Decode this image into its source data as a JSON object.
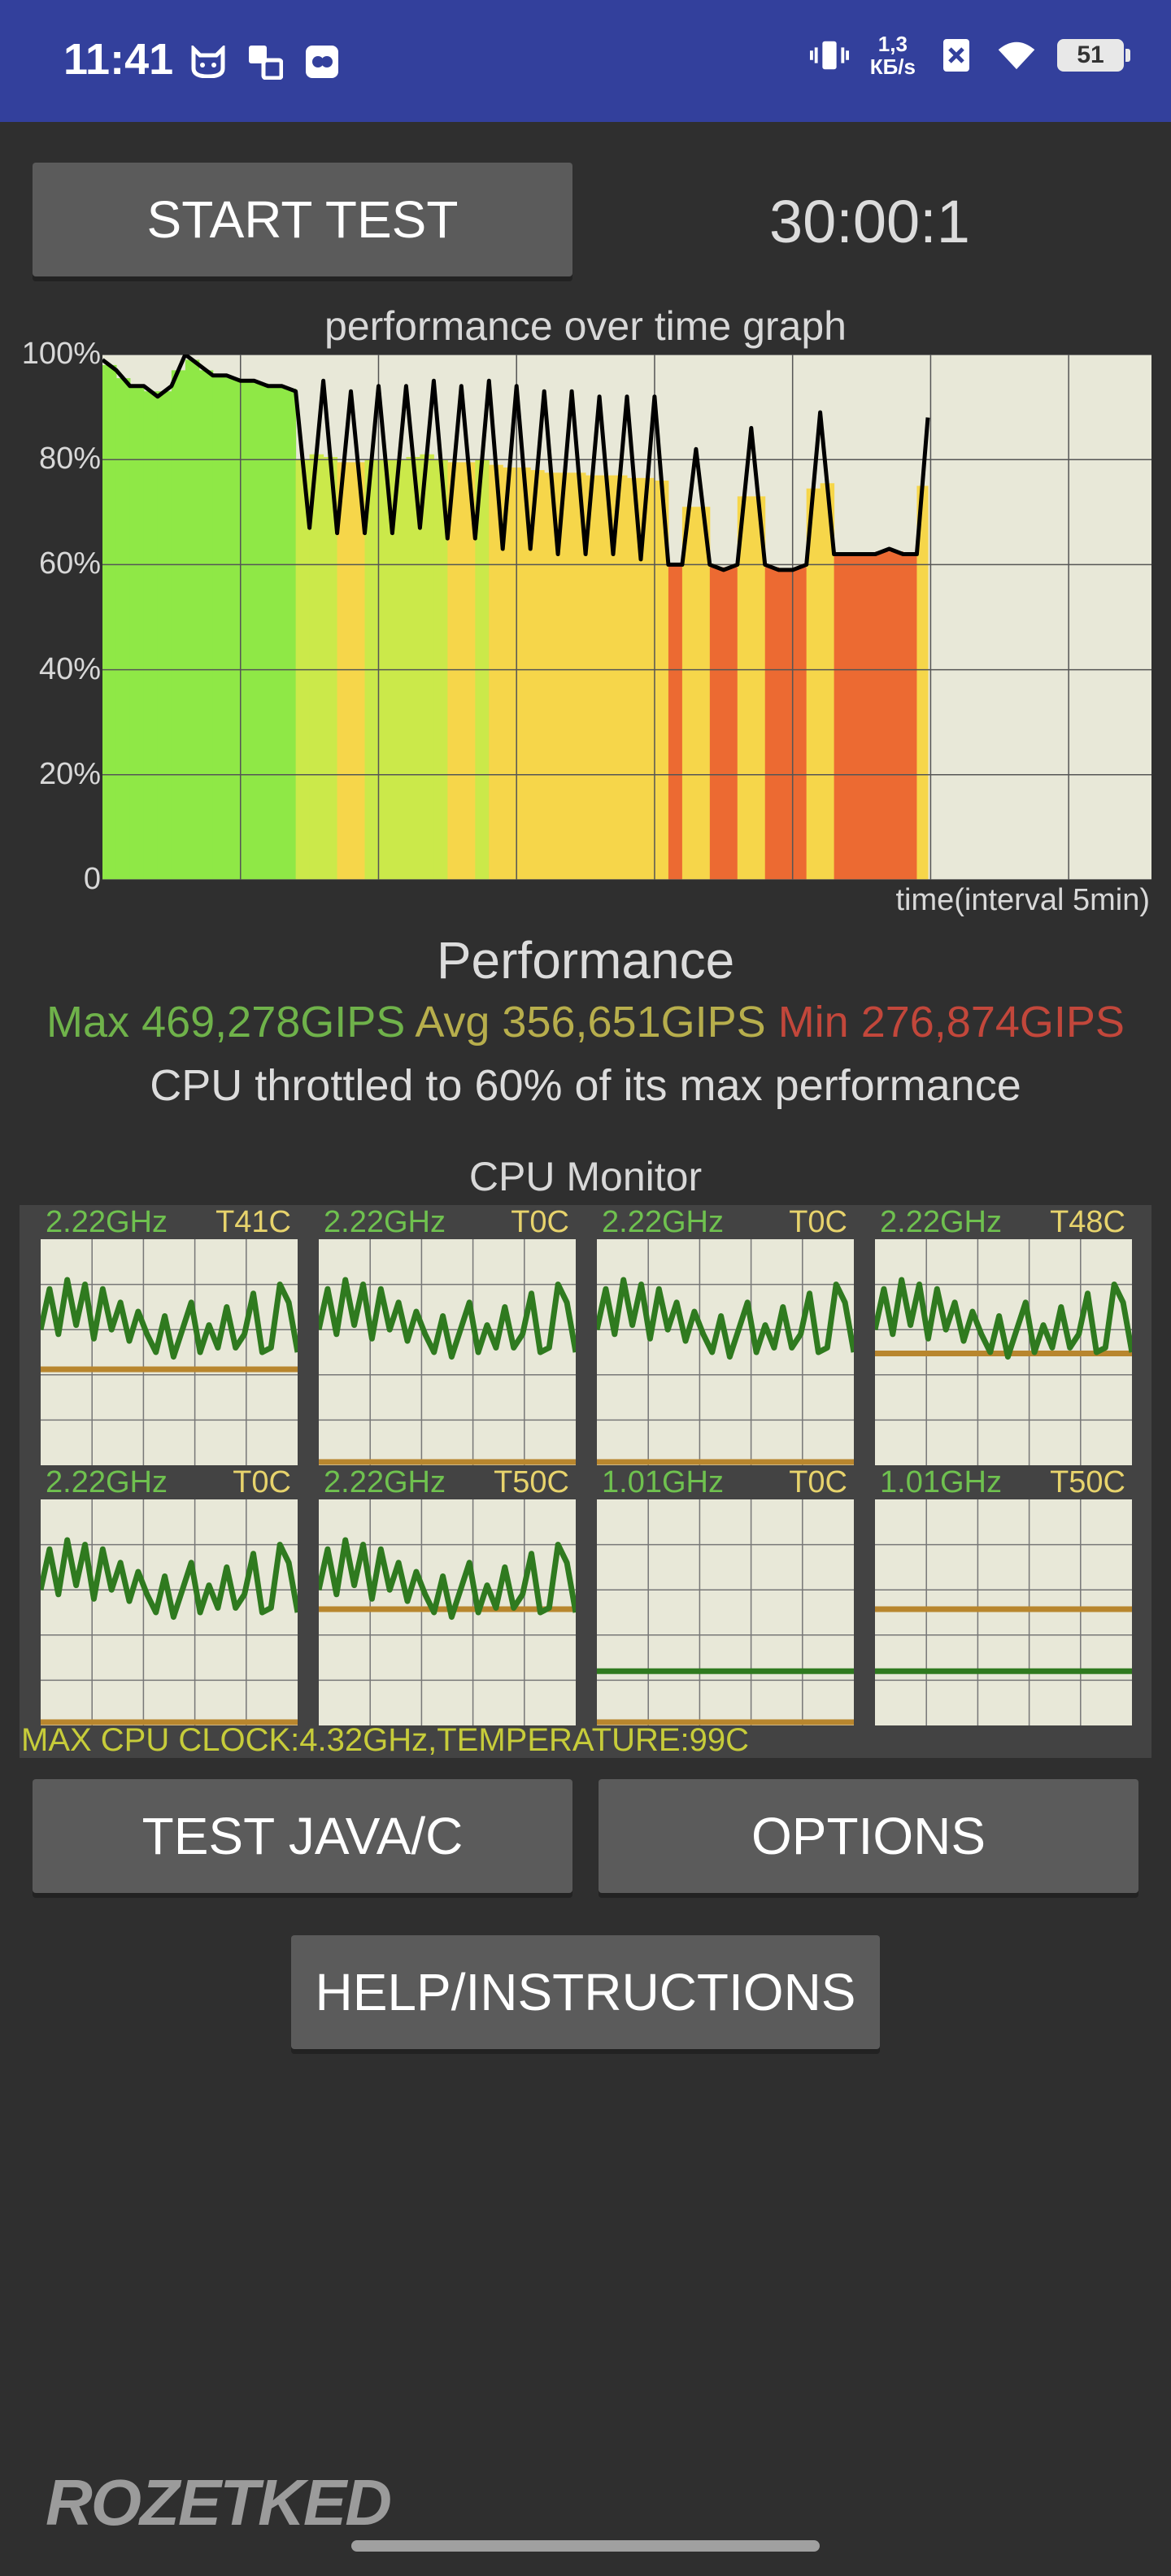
{
  "status": {
    "time": "11:41",
    "net_speed_value": "1,3",
    "net_speed_unit": "КБ/s",
    "battery": "51",
    "icons": [
      "cat-face-icon",
      "dual-box-icon",
      "app-badge-icon",
      "vibrate-icon",
      "close-box-icon",
      "wifi-icon",
      "battery-icon"
    ]
  },
  "controls": {
    "start_test_label": "START TEST",
    "timer": "30:00:1",
    "test_java_label": "TEST JAVA/C",
    "options_label": "OPTIONS",
    "help_label": "HELP/INSTRUCTIONS"
  },
  "chart_data": {
    "type": "area",
    "title": "performance over time graph",
    "xlabel": "time(interval 5min)",
    "ylabel": "",
    "y_ticks": [
      "100%",
      "80%",
      "60%",
      "40%",
      "20%",
      "0"
    ],
    "ylim": [
      0,
      100
    ],
    "x_range_minutes": [
      0,
      38
    ],
    "grid": true,
    "series": [
      {
        "x": [
          0,
          0.5,
          1,
          1.5,
          2,
          2.5,
          3,
          3.5,
          4,
          4.5,
          5,
          5.5,
          6,
          6.5,
          7,
          7.5,
          8,
          8.5,
          9,
          9.5,
          10,
          10.5,
          11,
          11.5,
          12,
          12.5,
          13,
          13.5,
          14,
          14.5,
          15,
          15.5,
          16,
          16.5,
          17,
          17.5,
          18,
          18.5,
          19,
          19.5,
          20,
          20.5,
          21,
          21.5,
          22,
          22.5,
          23,
          23.5,
          24,
          24.5,
          25,
          25.5,
          26,
          26.5,
          27,
          27.5,
          28,
          28.5,
          29,
          29.5,
          29.9
        ],
        "values": [
          99,
          97,
          94,
          94,
          92,
          94,
          100,
          98,
          96,
          96,
          95,
          95,
          94,
          94,
          93,
          67,
          95,
          66,
          93,
          66,
          94,
          66,
          94,
          67,
          95,
          65,
          94,
          65,
          95,
          63,
          94,
          63,
          93,
          62,
          93,
          62,
          92,
          62,
          92,
          61,
          92,
          60,
          60,
          82,
          60,
          59,
          60,
          86,
          60,
          59,
          59,
          60,
          89,
          62,
          62,
          62,
          62,
          63,
          62,
          62,
          88
        ]
      }
    ],
    "annotations": []
  },
  "performance": {
    "title": "Performance",
    "max_label": "Max 469,278GIPS",
    "avg_label": "Avg 356,651GIPS",
    "min_label": "Min 276,874GIPS",
    "throttle_text": "CPU throttled to 60% of its max performance"
  },
  "cpu_monitor": {
    "title": "CPU Monitor",
    "cores": [
      {
        "freq": "2.22GHz",
        "temp": "T41C",
        "load": [
          60,
          78,
          58,
          82,
          62,
          80,
          56,
          78,
          60,
          72,
          55,
          68,
          58,
          50,
          66,
          48,
          60,
          72,
          50,
          62,
          52,
          70,
          52,
          58,
          76,
          50,
          52,
          80,
          72,
          50
        ],
        "temp_level": 0.41
      },
      {
        "freq": "2.22GHz",
        "temp": "T0C",
        "load": [
          60,
          78,
          58,
          82,
          62,
          80,
          56,
          78,
          60,
          72,
          55,
          68,
          58,
          50,
          66,
          48,
          60,
          72,
          50,
          62,
          52,
          70,
          52,
          58,
          76,
          50,
          52,
          80,
          72,
          50
        ],
        "temp_level": 0.0
      },
      {
        "freq": "2.22GHz",
        "temp": "T0C",
        "load": [
          60,
          78,
          58,
          82,
          62,
          80,
          56,
          78,
          60,
          72,
          55,
          68,
          58,
          50,
          66,
          48,
          60,
          72,
          50,
          62,
          52,
          70,
          52,
          58,
          76,
          50,
          52,
          80,
          72,
          50
        ],
        "temp_level": 0.0
      },
      {
        "freq": "2.22GHz",
        "temp": "T48C",
        "load": [
          60,
          78,
          58,
          82,
          62,
          80,
          56,
          78,
          60,
          72,
          55,
          68,
          58,
          50,
          66,
          48,
          60,
          72,
          50,
          62,
          52,
          70,
          52,
          58,
          76,
          50,
          52,
          80,
          72,
          50
        ],
        "temp_level": 0.48
      },
      {
        "freq": "2.22GHz",
        "temp": "T0C",
        "load": [
          60,
          78,
          58,
          82,
          62,
          80,
          56,
          78,
          60,
          72,
          55,
          68,
          58,
          50,
          66,
          48,
          60,
          72,
          50,
          62,
          52,
          70,
          52,
          58,
          76,
          50,
          52,
          80,
          72,
          50
        ],
        "temp_level": 0.0
      },
      {
        "freq": "2.22GHz",
        "temp": "T50C",
        "load": [
          60,
          78,
          58,
          82,
          62,
          80,
          56,
          78,
          60,
          72,
          55,
          68,
          58,
          50,
          66,
          48,
          60,
          72,
          50,
          62,
          52,
          70,
          52,
          58,
          76,
          50,
          52,
          80,
          72,
          50
        ],
        "temp_level": 0.5
      },
      {
        "freq": "1.01GHz",
        "temp": "T0C",
        "load": [
          24,
          24,
          24,
          24,
          24,
          24,
          24,
          24,
          24,
          24,
          24,
          24,
          24,
          24,
          24,
          24,
          24,
          24,
          24,
          24,
          24,
          24,
          24,
          24,
          24,
          24,
          24,
          24,
          24,
          24
        ],
        "temp_level": 0.0
      },
      {
        "freq": "1.01GHz",
        "temp": "T50C",
        "load": [
          24,
          24,
          24,
          24,
          24,
          24,
          24,
          24,
          24,
          24,
          24,
          24,
          24,
          24,
          24,
          24,
          24,
          24,
          24,
          24,
          24,
          24,
          24,
          24,
          24,
          24,
          24,
          24,
          24,
          24
        ],
        "temp_level": 0.5
      }
    ],
    "max_clock_text": "MAX CPU CLOCK:4.32GHz,TEMPERATURE:99C"
  },
  "watermark": "ROZETKED"
}
